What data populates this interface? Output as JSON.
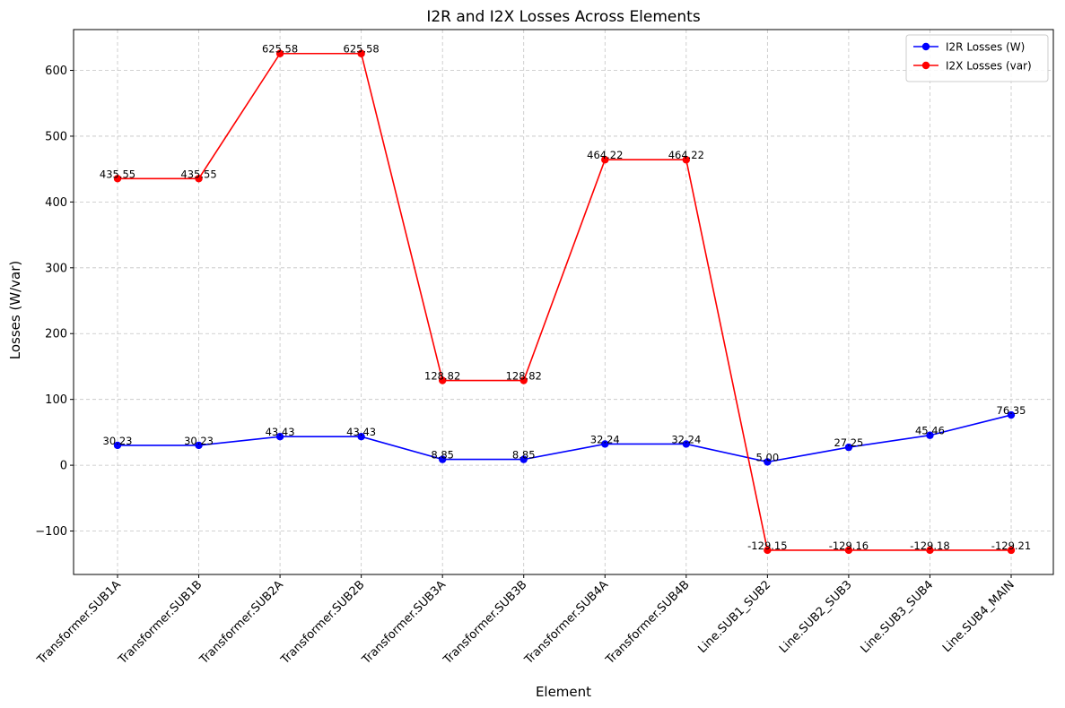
{
  "chart_data": {
    "type": "line",
    "title": "I2R and I2X Losses Across Elements",
    "xlabel": "Element",
    "ylabel": "Losses (W/var)",
    "categories": [
      "Transformer.SUB1A",
      "Transformer.SUB1B",
      "Transformer.SUB2A",
      "Transformer.SUB2B",
      "Transformer.SUB3A",
      "Transformer.SUB3B",
      "Transformer.SUB4A",
      "Transformer.SUB4B",
      "Line.SUB1_SUB2",
      "Line.SUB2_SUB3",
      "Line.SUB3_SUB4",
      "Line.SUB4_MAIN"
    ],
    "ylim": [
      -166,
      662
    ],
    "yticks": [
      -100,
      0,
      100,
      200,
      300,
      400,
      500,
      600
    ],
    "ytick_labels": [
      "−100",
      "0",
      "100",
      "200",
      "300",
      "400",
      "500",
      "600"
    ],
    "grid": true,
    "legend_position": "top-right",
    "series": [
      {
        "name": "I2R Losses (W)",
        "color": "#0000ff",
        "values": [
          30.23,
          30.23,
          43.43,
          43.43,
          8.85,
          8.85,
          32.24,
          32.24,
          5.0,
          27.25,
          45.46,
          76.35
        ],
        "labels": [
          "30.23",
          "30.23",
          "43.43",
          "43.43",
          "8.85",
          "8.85",
          "32.24",
          "32.24",
          "5.00",
          "27.25",
          "45.46",
          "76.35"
        ]
      },
      {
        "name": "I2X Losses (var)",
        "color": "#ff0000",
        "values": [
          435.55,
          435.55,
          625.58,
          625.58,
          128.82,
          128.82,
          464.22,
          464.22,
          -129.15,
          -129.16,
          -129.18,
          -129.21
        ],
        "labels": [
          "435.55",
          "435.55",
          "625.58",
          "625.58",
          "128.82",
          "128.82",
          "464.22",
          "464.22",
          "-129.15",
          "-129.16",
          "-129.18",
          "-129.21"
        ]
      }
    ]
  }
}
